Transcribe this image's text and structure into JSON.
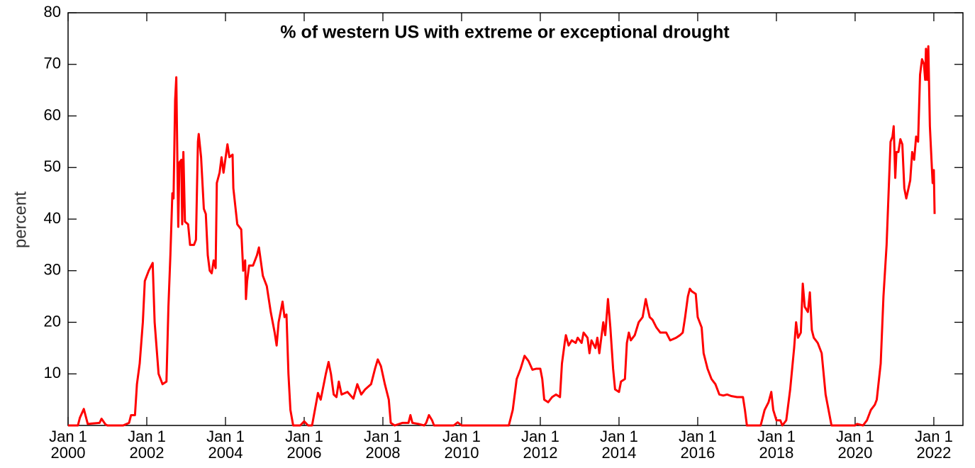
{
  "chart_data": {
    "type": "line",
    "title": "% of western US with extreme or exceptional drought",
    "y_label": "percent",
    "color": "#ff0000",
    "xlim": [
      2000,
      2022.74
    ],
    "ylim": [
      0,
      80
    ],
    "yticks": [
      10,
      20,
      30,
      40,
      50,
      60,
      70,
      80
    ],
    "xticks": [
      {
        "value": 2000,
        "label": [
          "Jan 1",
          "2000"
        ]
      },
      {
        "value": 2002,
        "label": [
          "Jan 1",
          "2002"
        ]
      },
      {
        "value": 2004,
        "label": [
          "Jan 1",
          "2004"
        ]
      },
      {
        "value": 2006,
        "label": [
          "Jan 1",
          "2006"
        ]
      },
      {
        "value": 2008,
        "label": [
          "Jan 1",
          "2008"
        ]
      },
      {
        "value": 2010,
        "label": [
          "Jan 1",
          "2010"
        ]
      },
      {
        "value": 2012,
        "label": [
          "Jan 1",
          "2012"
        ]
      },
      {
        "value": 2014,
        "label": [
          "Jan 1",
          "2014"
        ]
      },
      {
        "value": 2016,
        "label": [
          "Jan 1",
          "2016"
        ]
      },
      {
        "value": 2018,
        "label": [
          "Jan 1",
          "2018"
        ]
      },
      {
        "value": 2020,
        "label": [
          "Jan 1",
          "2020"
        ]
      },
      {
        "value": 2022,
        "label": [
          "Jan 1",
          "2022"
        ]
      }
    ],
    "x": [
      2000,
      2000.25,
      2000.3,
      2000.4,
      2000.5,
      2000.8,
      2000.85,
      2000.95,
      2001,
      2001.4,
      2001.55,
      2001.6,
      2001.7,
      2001.75,
      2001.82,
      2001.9,
      2001.95,
      2002.05,
      2002.15,
      2002.2,
      2002.3,
      2002.4,
      2002.5,
      2002.55,
      2002.6,
      2002.65,
      2002.68,
      2002.72,
      2002.75,
      2002.78,
      2002.8,
      2002.83,
      2002.88,
      2002.9,
      2002.93,
      2002.97,
      2003.05,
      2003.1,
      2003.2,
      2003.25,
      2003.3,
      2003.32,
      2003.38,
      2003.45,
      2003.5,
      2003.55,
      2003.6,
      2003.65,
      2003.7,
      2003.75,
      2003.78,
      2003.85,
      2003.9,
      2003.95,
      2004.05,
      2004.1,
      2004.18,
      2004.2,
      2004.3,
      2004.4,
      2004.45,
      2004.5,
      2004.52,
      2004.55,
      2004.6,
      2004.7,
      2004.8,
      2004.85,
      2004.95,
      2005.05,
      2005.15,
      2005.25,
      2005.3,
      2005.35,
      2005.45,
      2005.5,
      2005.55,
      2005.6,
      2005.65,
      2005.72,
      2005.9,
      2006,
      2006.1,
      2006.2,
      2006.32,
      2006.35,
      2006.42,
      2006.55,
      2006.62,
      2006.68,
      2006.75,
      2006.82,
      2006.88,
      2006.95,
      2007.1,
      2007.25,
      2007.35,
      2007.45,
      2007.55,
      2007.7,
      2007.8,
      2007.87,
      2007.95,
      2008.05,
      2008.15,
      2008.2,
      2008.3,
      2008.5,
      2008.65,
      2008.7,
      2008.75,
      2008.9,
      2009.05,
      2009.1,
      2009.17,
      2009.25,
      2009.3,
      2009.8,
      2009.9,
      2010,
      2011.2,
      2011.3,
      2011.4,
      2011.5,
      2011.6,
      2011.7,
      2011.8,
      2011.9,
      2012,
      2012.05,
      2012.1,
      2012.2,
      2012.3,
      2012.4,
      2012.5,
      2012.55,
      2012.62,
      2012.65,
      2012.72,
      2012.8,
      2012.9,
      2012.95,
      2013.05,
      2013.1,
      2013.2,
      2013.25,
      2013.3,
      2013.4,
      2013.45,
      2013.5,
      2013.6,
      2013.65,
      2013.72,
      2013.78,
      2013.85,
      2013.9,
      2014,
      2014.05,
      2014.15,
      2014.2,
      2014.25,
      2014.3,
      2014.4,
      2014.5,
      2014.6,
      2014.68,
      2014.72,
      2014.78,
      2014.85,
      2014.95,
      2015.05,
      2015.2,
      2015.3,
      2015.45,
      2015.55,
      2015.62,
      2015.68,
      2015.75,
      2015.8,
      2015.85,
      2015.95,
      2016,
      2016.1,
      2016.15,
      2016.25,
      2016.35,
      2016.45,
      2016.55,
      2016.65,
      2016.75,
      2016.85,
      2017,
      2017.15,
      2017.2,
      2017.25,
      2017.6,
      2017.7,
      2017.8,
      2017.87,
      2017.92,
      2018,
      2018.1,
      2018.15,
      2018.25,
      2018.35,
      2018.45,
      2018.5,
      2018.55,
      2018.62,
      2018.67,
      2018.72,
      2018.8,
      2018.85,
      2018.9,
      2018.95,
      2019.05,
      2019.15,
      2019.25,
      2019.3,
      2019.4,
      2020,
      2020.05,
      2020.2,
      2020.3,
      2020.4,
      2020.5,
      2020.55,
      2020.65,
      2020.72,
      2020.8,
      2020.85,
      2020.9,
      2020.95,
      2020.98,
      2021.02,
      2021.05,
      2021.1,
      2021.15,
      2021.2,
      2021.25,
      2021.3,
      2021.4,
      2021.45,
      2021.5,
      2021.55,
      2021.6,
      2021.65,
      2021.7,
      2021.75,
      2021.78,
      2021.8,
      2021.83,
      2021.86,
      2021.9,
      2021.95,
      2021.97,
      2022,
      2022.02
    ],
    "values": [
      0,
      0,
      1.5,
      3.2,
      0.3,
      0.5,
      1.3,
      0.2,
      0,
      0,
      0.5,
      2,
      2,
      8,
      12,
      20,
      28,
      30,
      31.5,
      20,
      10,
      8,
      8.5,
      23,
      33,
      45,
      44,
      63,
      67.5,
      50,
      38.5,
      51,
      51.5,
      39,
      53,
      39.5,
      39,
      35,
      35,
      36,
      55,
      56.5,
      52,
      42,
      41,
      33,
      30,
      29.5,
      32,
      30.5,
      47,
      49,
      52,
      49,
      54.5,
      52,
      52.5,
      46,
      39,
      38,
      30,
      32,
      24.5,
      28,
      31,
      31,
      33,
      34.5,
      29,
      27,
      22,
      18,
      15.5,
      20,
      24,
      21,
      21.5,
      10,
      3,
      0,
      0,
      0.8,
      0,
      0,
      5,
      6.3,
      5,
      10,
      12.3,
      10,
      6,
      5.5,
      8.5,
      6,
      6.5,
      5.2,
      8,
      6,
      7,
      8,
      11,
      12.8,
      11.5,
      8,
      5,
      0.5,
      0,
      0.5,
      0.5,
      2,
      0.5,
      0.3,
      0,
      0.5,
      2,
      1,
      0,
      0,
      0.6,
      0,
      0,
      3,
      9,
      11,
      13.5,
      12.5,
      10.8,
      11,
      11,
      9,
      5,
      4.5,
      5.5,
      6,
      5.5,
      12,
      16,
      17.5,
      15.5,
      16.5,
      16,
      17,
      16,
      18,
      17,
      14,
      16.5,
      15,
      17,
      14,
      20,
      17.5,
      24.5,
      19,
      11,
      7,
      6.5,
      8.5,
      9,
      16,
      18,
      16.5,
      17.5,
      20,
      21,
      24.5,
      23,
      21,
      20.5,
      19,
      18,
      18,
      16.5,
      17,
      17.5,
      18,
      21,
      25,
      26.5,
      26,
      25.5,
      21,
      19,
      14,
      11,
      9,
      8,
      6,
      5.8,
      6,
      5.7,
      5.5,
      5.5,
      3,
      0,
      0,
      3,
      4.5,
      6.5,
      3,
      1,
      1,
      0,
      1,
      7,
      15,
      20,
      17,
      18,
      27.5,
      23,
      22,
      25.8,
      18.5,
      17,
      16,
      14,
      6,
      4,
      0,
      0,
      0.3,
      0,
      1,
      3,
      4,
      5,
      12,
      25,
      35,
      45,
      55,
      56,
      58,
      48,
      53,
      53,
      55.5,
      54.5,
      46,
      44,
      47.5,
      53,
      51.5,
      56,
      55,
      68,
      71,
      70,
      67,
      73,
      67,
      73.5,
      58,
      50,
      47,
      49.5,
      41
    ]
  }
}
